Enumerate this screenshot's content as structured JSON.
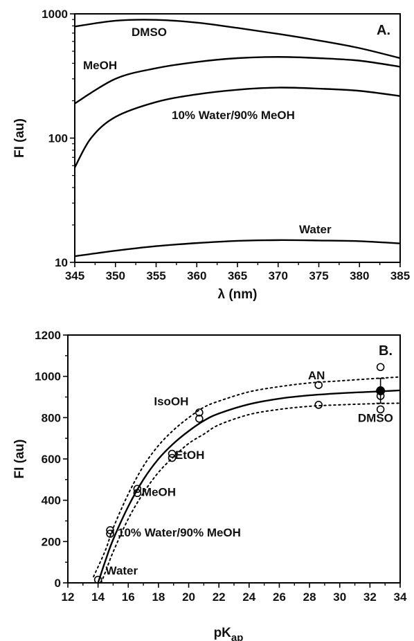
{
  "chart_data": [
    {
      "type": "line",
      "panel_label": "A.",
      "xlabel": "λ (nm)",
      "ylabel": "FI (au)",
      "xlim": [
        345,
        385
      ],
      "ylim": [
        10,
        1000
      ],
      "yscale": "log",
      "xticks": [
        345,
        350,
        355,
        360,
        365,
        370,
        375,
        380,
        385
      ],
      "yticks": [
        {
          "value": 10,
          "label": "10"
        },
        {
          "value": 100,
          "label": "100"
        },
        {
          "value": 1000,
          "label": "1000"
        }
      ],
      "grid": false,
      "series": [
        {
          "name": "DMSO",
          "color": "#000000",
          "x": [
            345,
            350,
            355,
            360,
            365,
            370,
            375,
            380,
            385
          ],
          "y": [
            790,
            880,
            895,
            850,
            770,
            690,
            610,
            530,
            440
          ]
        },
        {
          "name": "MeOH",
          "color": "#000000",
          "x": [
            345,
            350,
            355,
            360,
            365,
            370,
            375,
            380,
            385
          ],
          "y": [
            190,
            300,
            365,
            410,
            440,
            450,
            440,
            420,
            375
          ]
        },
        {
          "name": "10% Water/90% MeOH",
          "color": "#000000",
          "x": [
            345,
            347,
            350,
            355,
            360,
            365,
            370,
            375,
            380,
            385
          ],
          "y": [
            58,
            100,
            148,
            195,
            225,
            245,
            255,
            250,
            240,
            218
          ]
        },
        {
          "name": "Water",
          "color": "#000000",
          "x": [
            345,
            350,
            355,
            360,
            365,
            370,
            375,
            380,
            385
          ],
          "y": [
            11.2,
            12.4,
            13.5,
            14.3,
            14.9,
            15.1,
            15.0,
            14.8,
            14.2
          ]
        }
      ]
    },
    {
      "type": "scatter",
      "panel_label": "B.",
      "xlabel": "pK",
      "xlabel_sub": "ap",
      "ylabel": "FI (au)",
      "xlim": [
        12,
        34
      ],
      "ylim": [
        0,
        1200
      ],
      "xticks": [
        12,
        14,
        16,
        18,
        20,
        22,
        24,
        26,
        28,
        30,
        32,
        34
      ],
      "yticks": [
        0,
        200,
        400,
        600,
        800,
        1000,
        1200
      ],
      "grid": false,
      "points": [
        {
          "solvent": "Water",
          "x": 14.0,
          "y": 15
        },
        {
          "solvent": "10% Water/90% MeOH",
          "x": 14.8,
          "y": 255
        },
        {
          "solvent": "10% Water/90% MeOH",
          "x": 14.8,
          "y": 238
        },
        {
          "solvent": "MeOH",
          "x": 16.6,
          "y": 455
        },
        {
          "solvent": "MeOH",
          "x": 16.6,
          "y": 435
        },
        {
          "solvent": "EtOH",
          "x": 18.9,
          "y": 625
        },
        {
          "solvent": "EtOH",
          "x": 18.9,
          "y": 605
        },
        {
          "solvent": "IsoOH",
          "x": 20.7,
          "y": 825
        },
        {
          "solvent": "IsoOH",
          "x": 20.7,
          "y": 795
        },
        {
          "solvent": "AN",
          "x": 28.6,
          "y": 958
        },
        {
          "solvent": "AN",
          "x": 28.6,
          "y": 862
        },
        {
          "solvent": "DMSO",
          "x": 32.7,
          "y": 1045
        },
        {
          "solvent": "DMSO",
          "x": 32.7,
          "y": 905
        },
        {
          "solvent": "DMSO",
          "x": 32.7,
          "y": 840
        }
      ],
      "mean_point": {
        "x": 32.7,
        "y": 930,
        "error": 60
      },
      "fit_curve": {
        "x": [
          14.0,
          14.5,
          15,
          16,
          17,
          18,
          19,
          20,
          21,
          22,
          24,
          26,
          28,
          30,
          32,
          34
        ],
        "y": [
          0,
          110,
          210,
          370,
          500,
          600,
          675,
          735,
          785,
          820,
          865,
          892,
          908,
          918,
          925,
          932
        ]
      },
      "confidence_upper": {
        "x": [
          13.7,
          14.5,
          15,
          16,
          17,
          18,
          19,
          20,
          21,
          22,
          24,
          26,
          28,
          30,
          32,
          34
        ],
        "y": [
          30,
          160,
          265,
          430,
          565,
          665,
          740,
          800,
          850,
          880,
          925,
          950,
          968,
          978,
          988,
          997
        ]
      },
      "confidence_lower": {
        "x": [
          14.2,
          14.5,
          15,
          16,
          17,
          18,
          19,
          20,
          21,
          22,
          24,
          26,
          28,
          30,
          32,
          34
        ],
        "y": [
          0,
          55,
          150,
          310,
          435,
          535,
          610,
          675,
          720,
          765,
          815,
          840,
          855,
          862,
          867,
          870
        ]
      },
      "labels": [
        {
          "text": "IsoOH",
          "x": 17.7,
          "y": 860
        },
        {
          "text": "EtOH",
          "x": 19.1,
          "y": 600
        },
        {
          "text": "MeOH",
          "x": 16.9,
          "y": 420
        },
        {
          "text": "10% Water/90% MeOH",
          "x": 15.3,
          "y": 225
        },
        {
          "text": "Water",
          "x": 14.5,
          "y": 40
        },
        {
          "text": "AN",
          "x": 27.9,
          "y": 985
        },
        {
          "text": "DMSO",
          "x": 31.2,
          "y": 780
        }
      ]
    }
  ]
}
